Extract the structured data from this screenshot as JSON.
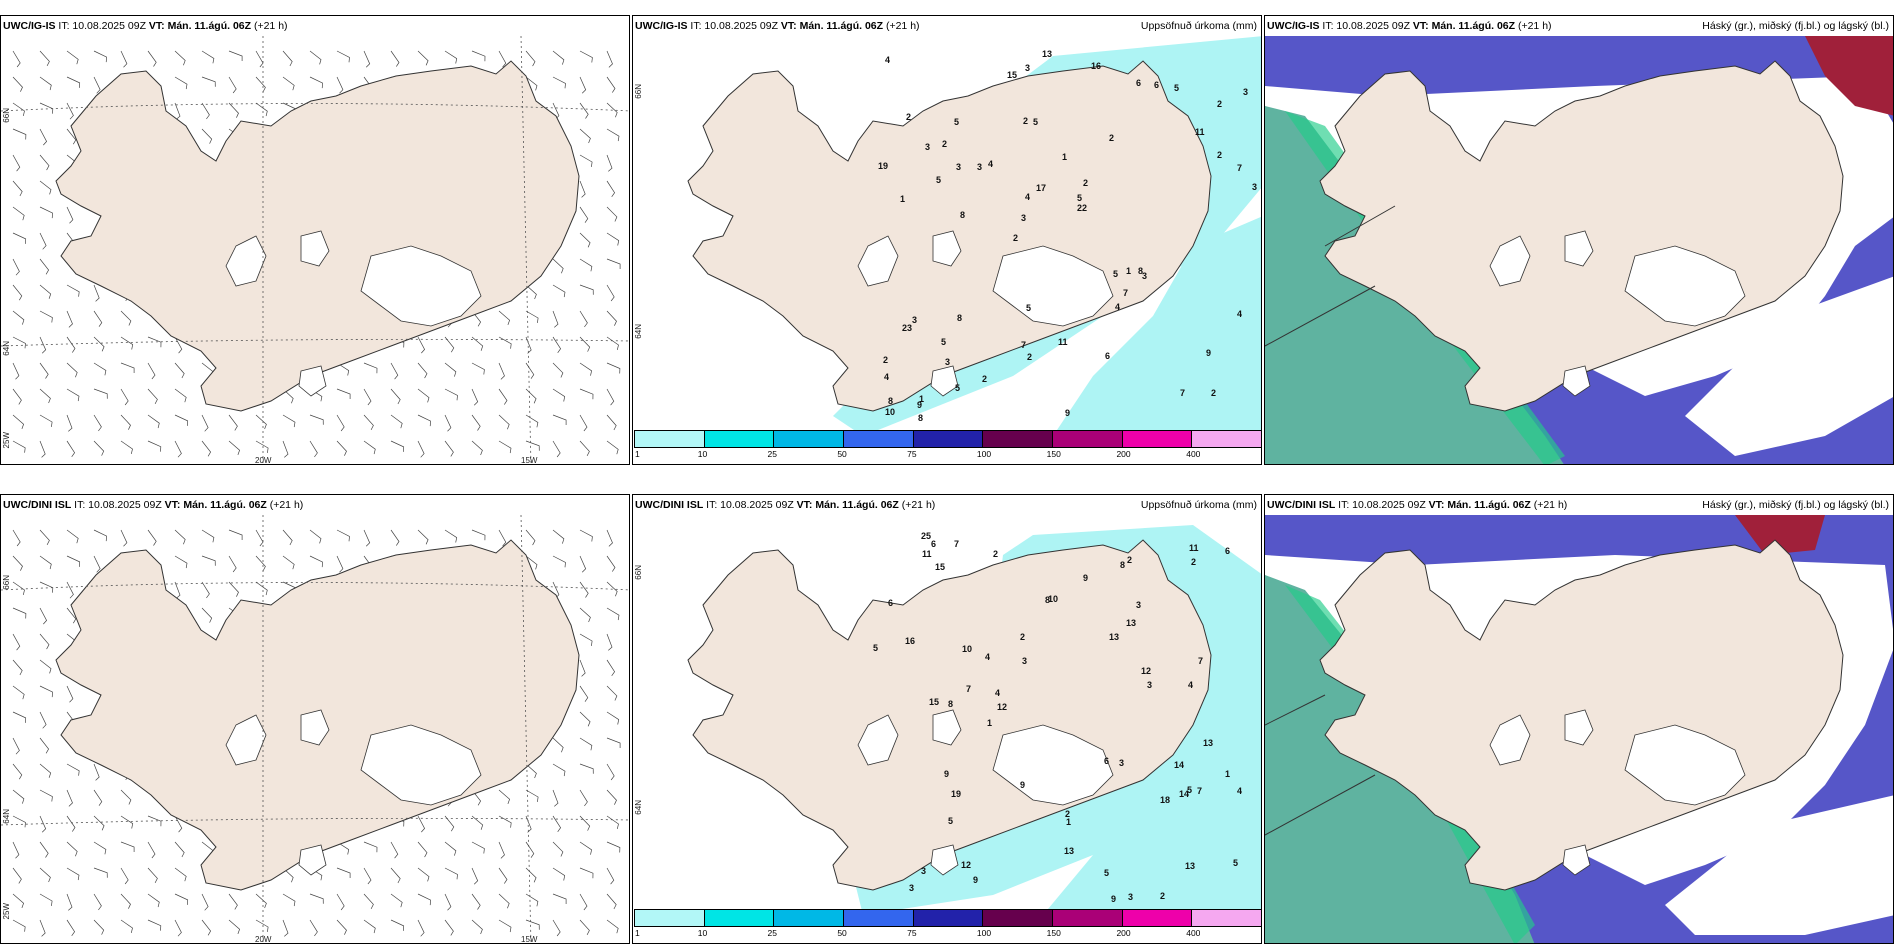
{
  "rows": [
    {
      "model": "UWC/IG-IS",
      "it_label": "IT: 10.08.2025 09Z",
      "vt_prefix": "VT:",
      "vt_value": "Mán. 11.ágú. 06Z",
      "lead": "(+21 h)"
    },
    {
      "model": "UWC/DINI ISL",
      "it_label": "IT: 10.08.2025 09Z",
      "vt_prefix": "VT:",
      "vt_value": "Mán. 11.ágú. 06Z",
      "lead": "(+21 h)"
    }
  ],
  "precip_title": "Uppsöfnuð úrkoma (mm)",
  "cloud_title": "Háský (gr.), miðský (fj.bl.) og lágský (bl.)",
  "axis_labels": {
    "lat_66": "66N",
    "lat_64": "64N",
    "lon_20": "20W",
    "lon_15": "15W",
    "lon_25": "25W"
  },
  "legend_ticks": [
    "1",
    "10",
    "25",
    "50",
    "75",
    "100",
    "150",
    "200",
    "400"
  ],
  "legend_colors": [
    "#b2f7f7",
    "#00e5e5",
    "#00b8e6",
    "#3366ee",
    "#2222aa",
    "#66004d",
    "#aa0077",
    "#ee00aa",
    "#f5a8f0"
  ],
  "colors": {
    "land": "#f2e6dc",
    "precip": "#aef4f4",
    "precip_heavy": "#22dcdc",
    "mid_cloud": "#5656c8",
    "high_cloud": "#5fb3a0",
    "high_cloud_edge": "#22cc88",
    "top_cloud": "#a0203a",
    "glacier": "#ffffff"
  },
  "precip_numbers_top": [
    "2",
    "1",
    "2",
    "2",
    "2",
    "1",
    "2",
    "1",
    "3",
    "4",
    "4",
    "3",
    "5",
    "2",
    "3",
    "2",
    "3",
    "3",
    "5",
    "2",
    "3",
    "7",
    "4",
    "5",
    "6",
    "8",
    "7",
    "9",
    "8",
    "9",
    "3",
    "5",
    "4",
    "5",
    "7",
    "5",
    "8",
    "2",
    "22",
    "23",
    "11",
    "3",
    "7",
    "6",
    "5",
    "8",
    "10",
    "11",
    "5",
    "13",
    "8",
    "19",
    "2",
    "6",
    "9",
    "16",
    "15",
    "17",
    "4",
    "5",
    "2",
    "1",
    "3",
    "2",
    "4",
    "3"
  ],
  "precip_numbers_bottom": [
    "1",
    "2",
    "1",
    "3",
    "2",
    "4",
    "2",
    "3",
    "9",
    "4",
    "3",
    "2",
    "5",
    "12",
    "9",
    "15",
    "5",
    "12",
    "8",
    "10",
    "16",
    "14",
    "13",
    "15",
    "6",
    "13",
    "18",
    "9",
    "9",
    "7",
    "13",
    "7",
    "5",
    "5",
    "4",
    "8",
    "6",
    "11",
    "12",
    "25",
    "14",
    "13",
    "19",
    "7",
    "9",
    "6",
    "3",
    "4",
    "2",
    "3",
    "1",
    "3",
    "2",
    "5",
    "3",
    "13",
    "10",
    "11",
    "8",
    "7",
    "6"
  ]
}
